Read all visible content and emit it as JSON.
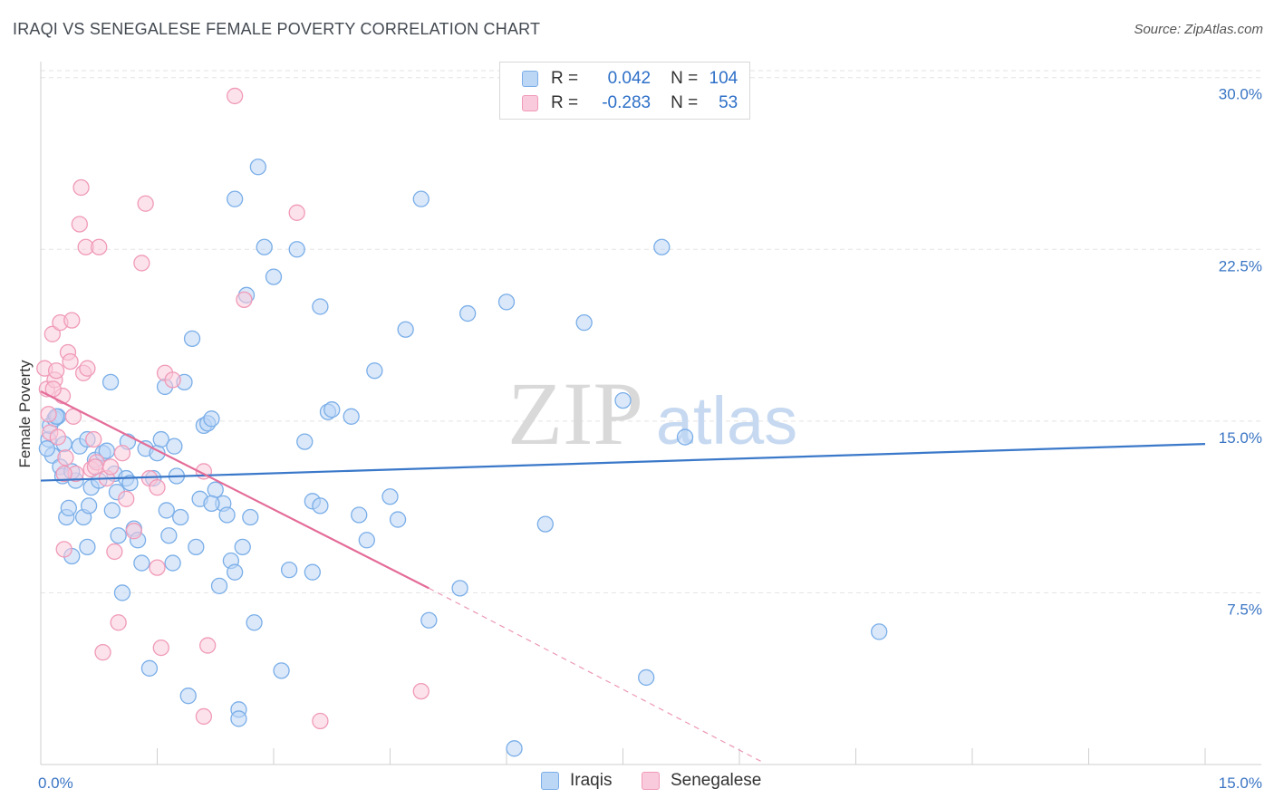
{
  "title": "IRAQI VS SENEGALESE FEMALE POVERTY CORRELATION CHART",
  "source": "Source: ZipAtlas.com",
  "watermark": {
    "zip": "ZIP",
    "atlas": "atlas"
  },
  "legend": {
    "rows": [
      {
        "r_label": "R =",
        "r_value": "0.042",
        "n_label": "N =",
        "n_value": "104",
        "color": "#7aaee8",
        "fill": "#bcd6f5"
      },
      {
        "r_label": "R =",
        "r_value": "-0.283",
        "n_label": "N =",
        "n_value": "53",
        "color": "#f09ab8",
        "fill": "#f9cadb"
      }
    ]
  },
  "bottom_legend": [
    {
      "label": "Iraqis",
      "color": "#7aaee8",
      "fill": "#bcd6f5"
    },
    {
      "label": "Senegalese",
      "color": "#f09ab8",
      "fill": "#f9cadb"
    }
  ],
  "chart_data": {
    "type": "scatter",
    "ylabel": "Female Poverty",
    "xlim": [
      0,
      15
    ],
    "ylim": [
      0,
      30.7
    ],
    "x_tick_labels": [
      {
        "value": 0,
        "label": "0.0%"
      },
      {
        "value": 15,
        "label": "15.0%"
      }
    ],
    "y_tick_labels": [
      {
        "value": 7.5,
        "label": "7.5%"
      },
      {
        "value": 15,
        "label": "15.0%"
      },
      {
        "value": 22.5,
        "label": "22.5%"
      },
      {
        "value": 30,
        "label": "30.0%"
      }
    ],
    "x_minor_ticks": [
      1.5,
      3.0,
      4.5,
      6.0,
      7.5,
      9.0,
      10.5,
      12.0,
      13.5,
      15.0
    ],
    "grid": true,
    "colors": {
      "iraqis": "#3a78c9",
      "senegalese": "#e46c98"
    },
    "series": [
      {
        "name": "Iraqis",
        "trend": {
          "x": [
            0,
            15
          ],
          "y": [
            12.4,
            14.0
          ],
          "style": "solid"
        },
        "points": [
          [
            0.1,
            14.2
          ],
          [
            0.12,
            14.8
          ],
          [
            0.15,
            13.5
          ],
          [
            0.18,
            15.1
          ],
          [
            0.22,
            15.2
          ],
          [
            0.25,
            13.0
          ],
          [
            0.28,
            12.6
          ],
          [
            0.3,
            14.0
          ],
          [
            0.33,
            10.8
          ],
          [
            0.36,
            11.2
          ],
          [
            0.4,
            9.1
          ],
          [
            0.45,
            12.4
          ],
          [
            0.5,
            13.9
          ],
          [
            0.55,
            10.8
          ],
          [
            0.6,
            9.5
          ],
          [
            0.62,
            11.3
          ],
          [
            0.65,
            12.1
          ],
          [
            0.7,
            13.3
          ],
          [
            0.75,
            12.4
          ],
          [
            0.8,
            13.6
          ],
          [
            0.85,
            13.7
          ],
          [
            0.9,
            16.7
          ],
          [
            0.92,
            11.1
          ],
          [
            0.95,
            12.7
          ],
          [
            1.0,
            10.0
          ],
          [
            1.05,
            7.5
          ],
          [
            1.1,
            12.5
          ],
          [
            1.12,
            14.1
          ],
          [
            1.15,
            12.3
          ],
          [
            1.2,
            10.3
          ],
          [
            1.25,
            9.8
          ],
          [
            1.3,
            8.8
          ],
          [
            1.35,
            13.8
          ],
          [
            1.4,
            4.2
          ],
          [
            1.45,
            12.5
          ],
          [
            1.5,
            13.6
          ],
          [
            1.55,
            14.2
          ],
          [
            1.6,
            16.5
          ],
          [
            1.62,
            11.1
          ],
          [
            1.65,
            10.0
          ],
          [
            1.7,
            8.8
          ],
          [
            1.75,
            12.6
          ],
          [
            1.8,
            10.8
          ],
          [
            1.85,
            16.7
          ],
          [
            1.9,
            3.0
          ],
          [
            1.95,
            18.6
          ],
          [
            2.0,
            9.5
          ],
          [
            2.05,
            11.6
          ],
          [
            2.1,
            14.8
          ],
          [
            2.15,
            14.9
          ],
          [
            2.2,
            15.1
          ],
          [
            2.25,
            12.0
          ],
          [
            2.3,
            7.8
          ],
          [
            2.35,
            11.4
          ],
          [
            2.4,
            10.9
          ],
          [
            2.45,
            8.9
          ],
          [
            2.5,
            8.4
          ],
          [
            2.5,
            24.7
          ],
          [
            2.55,
            2.4
          ],
          [
            2.6,
            9.5
          ],
          [
            2.65,
            20.5
          ],
          [
            2.7,
            10.8
          ],
          [
            2.75,
            6.2
          ],
          [
            2.8,
            26.1
          ],
          [
            2.88,
            22.6
          ],
          [
            3.0,
            21.3
          ],
          [
            3.1,
            4.1
          ],
          [
            3.2,
            8.5
          ],
          [
            3.3,
            22.5
          ],
          [
            3.4,
            14.1
          ],
          [
            3.5,
            8.4
          ],
          [
            3.5,
            11.5
          ],
          [
            3.6,
            20.0
          ],
          [
            3.6,
            11.3
          ],
          [
            3.7,
            15.4
          ],
          [
            3.75,
            15.5
          ],
          [
            4.0,
            15.2
          ],
          [
            4.1,
            10.9
          ],
          [
            4.2,
            9.8
          ],
          [
            4.3,
            17.2
          ],
          [
            4.5,
            11.7
          ],
          [
            4.6,
            10.7
          ],
          [
            4.7,
            19.0
          ],
          [
            4.9,
            24.7
          ],
          [
            5.0,
            6.3
          ],
          [
            5.4,
            7.7
          ],
          [
            5.5,
            19.7
          ],
          [
            6.0,
            20.2
          ],
          [
            6.1,
            0.7
          ],
          [
            6.5,
            10.5
          ],
          [
            7.0,
            19.3
          ],
          [
            7.5,
            15.9
          ],
          [
            7.8,
            3.8
          ],
          [
            8.0,
            22.6
          ],
          [
            8.3,
            14.3
          ],
          [
            10.8,
            5.8
          ],
          [
            0.08,
            13.8
          ],
          [
            0.2,
            15.2
          ],
          [
            0.4,
            12.8
          ],
          [
            2.55,
            2.0
          ],
          [
            0.98,
            11.9
          ],
          [
            1.72,
            13.9
          ],
          [
            2.2,
            11.4
          ],
          [
            0.6,
            14.2
          ]
        ]
      },
      {
        "name": "Senegalese",
        "trend": {
          "x": [
            0,
            5.0
          ],
          "y": [
            16.3,
            7.7
          ],
          "style": "solid",
          "extension": {
            "x": [
              5.0,
              9.3
            ],
            "y": [
              7.7,
              0.1
            ],
            "style": "dashed"
          }
        },
        "points": [
          [
            0.05,
            17.3
          ],
          [
            0.08,
            16.4
          ],
          [
            0.1,
            15.3
          ],
          [
            0.12,
            14.5
          ],
          [
            0.15,
            18.8
          ],
          [
            0.18,
            16.8
          ],
          [
            0.2,
            17.2
          ],
          [
            0.22,
            14.3
          ],
          [
            0.25,
            19.3
          ],
          [
            0.28,
            16.1
          ],
          [
            0.3,
            9.4
          ],
          [
            0.32,
            13.4
          ],
          [
            0.35,
            18.0
          ],
          [
            0.38,
            17.6
          ],
          [
            0.4,
            19.4
          ],
          [
            0.42,
            15.2
          ],
          [
            0.45,
            12.7
          ],
          [
            0.5,
            23.6
          ],
          [
            0.52,
            25.2
          ],
          [
            0.55,
            17.1
          ],
          [
            0.58,
            22.6
          ],
          [
            0.6,
            17.3
          ],
          [
            0.65,
            12.9
          ],
          [
            0.68,
            14.2
          ],
          [
            0.72,
            13.2
          ],
          [
            0.75,
            22.6
          ],
          [
            0.8,
            4.9
          ],
          [
            0.85,
            12.5
          ],
          [
            0.9,
            13.0
          ],
          [
            0.95,
            9.3
          ],
          [
            1.0,
            6.2
          ],
          [
            1.05,
            13.6
          ],
          [
            1.1,
            11.6
          ],
          [
            1.2,
            10.2
          ],
          [
            1.3,
            21.9
          ],
          [
            1.35,
            24.5
          ],
          [
            1.4,
            12.5
          ],
          [
            1.5,
            8.6
          ],
          [
            1.55,
            5.1
          ],
          [
            1.6,
            17.1
          ],
          [
            1.7,
            16.8
          ],
          [
            2.1,
            12.8
          ],
          [
            2.15,
            5.2
          ],
          [
            2.5,
            29.2
          ],
          [
            2.62,
            20.3
          ],
          [
            3.3,
            24.1
          ],
          [
            3.6,
            1.9
          ],
          [
            4.9,
            3.2
          ],
          [
            2.1,
            2.1
          ],
          [
            0.3,
            12.7
          ],
          [
            0.7,
            13.0
          ],
          [
            1.5,
            12.1
          ],
          [
            0.16,
            16.4
          ]
        ]
      }
    ]
  }
}
